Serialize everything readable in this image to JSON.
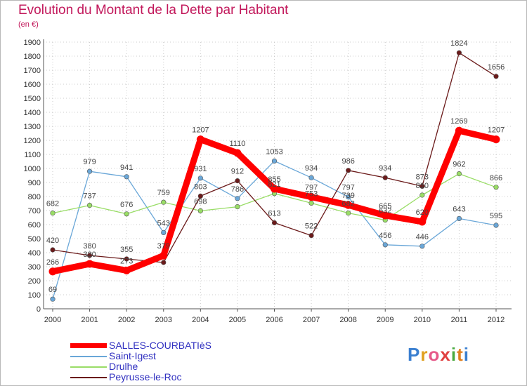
{
  "header": {
    "title": "Evolution du Montant de la Dette par Habitant",
    "subtitle": "(en €)"
  },
  "logo": {
    "text": "Proxiti"
  },
  "colors": {
    "salles": "#ff0000",
    "saint_igest": "#6aa7d8",
    "drulhe": "#99dd66",
    "peyrusse": "#6b1a1a",
    "axis": "#555555",
    "grid": "#cccccc",
    "title": "#c2185b",
    "legend_text": "#3030c0"
  },
  "chart_data": {
    "type": "line",
    "title": "Evolution du Montant de la Dette par Habitant",
    "subtitle": "(en €)",
    "xlabel": "",
    "ylabel": "",
    "x": [
      "2000",
      "2001",
      "2002",
      "2003",
      "2004",
      "2005",
      "2006",
      "2007",
      "2008",
      "2009",
      "2010",
      "2011",
      "2012"
    ],
    "ylim": [
      0,
      1900
    ],
    "ytick_step": 100,
    "grid": true,
    "legend_position": "bottom-left",
    "series": [
      {
        "name": "Saint-Igest",
        "key": "saint_igest",
        "values": [
          69,
          979,
          941,
          543,
          931,
          786,
          1053,
          934,
          797,
          456,
          446,
          643,
          595
        ],
        "labels": [
          "69",
          "979",
          "941",
          "543",
          "931",
          "786",
          "1053",
          "934",
          "797",
          "456",
          "446",
          "643",
          "595"
        ]
      },
      {
        "name": "Drulhe",
        "key": "drulhe",
        "values": [
          682,
          737,
          676,
          759,
          698,
          727,
          821,
          753,
          682,
          632,
          810,
          962,
          866
        ],
        "labels": [
          "682",
          "737",
          "676",
          "759",
          "698",
          "",
          "821",
          "753",
          "682",
          "632",
          "810",
          "962",
          "866"
        ]
      },
      {
        "name": "Peyrusse-le-Roc",
        "key": "peyrusse",
        "values": [
          420,
          380,
          355,
          330,
          803,
          912,
          613,
          522,
          986,
          934,
          873,
          1824,
          1656
        ],
        "labels": [
          "420",
          "380",
          "355",
          "",
          "803",
          "912",
          "613",
          "522",
          "986",
          "934",
          "873",
          "1824",
          "1656"
        ]
      },
      {
        "name": "SALLES-COURBATIèS",
        "key": "salles",
        "values": [
          266,
          320,
          273,
          379,
          1207,
          1110,
          855,
          797,
          739,
          665,
          620,
          1269,
          1207
        ],
        "labels": [
          "266",
          "320",
          "273",
          "379",
          "1207",
          "1110",
          "855",
          "797",
          "739",
          "665",
          "620",
          "1269",
          "1207"
        ]
      }
    ]
  },
  "legend": [
    {
      "label": "SALLES-COURBATIèS",
      "key": "salles"
    },
    {
      "label": "Saint-Igest",
      "key": "saint_igest"
    },
    {
      "label": "Drulhe",
      "key": "drulhe"
    },
    {
      "label": "Peyrusse-le-Roc",
      "key": "peyrusse"
    }
  ]
}
